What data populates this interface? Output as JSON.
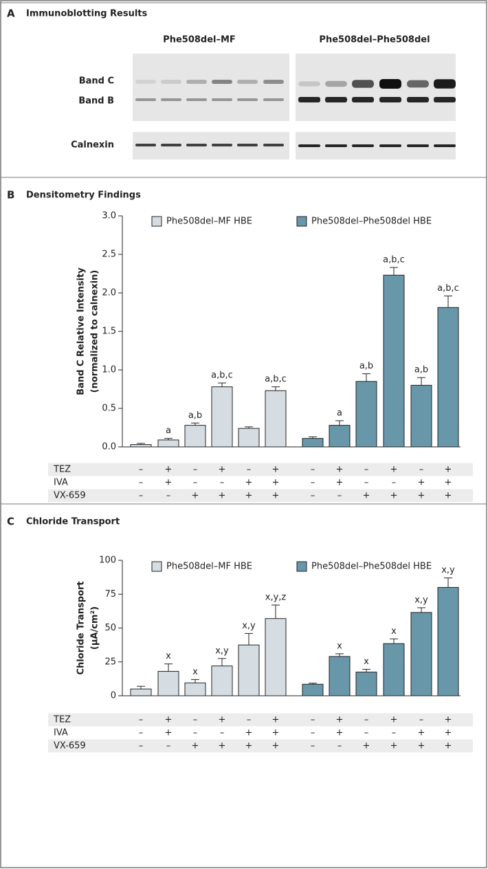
{
  "immunoblot": {
    "letter": "A",
    "title": "Immunoblotting Results",
    "groups": [
      "Phe508del–MF",
      "Phe508del–Phe508del"
    ],
    "bands": [
      "Band C",
      "Band B"
    ],
    "loading_control": "Calnexin"
  },
  "chart_data": [
    {
      "type": "bar",
      "letter": "B",
      "title": "Densitometry Findings",
      "y_label": [
        "Band C Relative Intensity",
        "(normalized to calnexin)"
      ],
      "ylim": [
        0,
        3
      ],
      "yticks": [
        {
          "value": 0,
          "label": "0.0"
        },
        0.5,
        {
          "value": 1,
          "label": "1.0"
        },
        1.5,
        {
          "value": 2,
          "label": "2.0"
        },
        2.5,
        {
          "value": 3,
          "label": "3.0"
        }
      ],
      "series": [
        {
          "name": "Phe508del–MF HBE",
          "color": "#d5dde3",
          "values": [
            0.03,
            0.09,
            0.28,
            0.78,
            0.24,
            0.73
          ],
          "errors": [
            0.015,
            0.02,
            0.03,
            0.05,
            0.02,
            0.05
          ],
          "annotations": [
            null,
            "a",
            "a,b",
            "a,b,c",
            null,
            "a,b,c"
          ]
        },
        {
          "name": "Phe508del–Phe508del HBE",
          "color": "#6897a9",
          "values": [
            0.11,
            0.28,
            0.85,
            2.23,
            0.8,
            1.81
          ],
          "errors": [
            0.02,
            0.06,
            0.1,
            0.1,
            0.1,
            0.15
          ],
          "annotations": [
            null,
            "a",
            "a,b",
            "a,b,c",
            "a,b",
            "a,b,c"
          ]
        }
      ],
      "conditions": [
        {
          "name": "TEZ",
          "marks": [
            "–",
            "+",
            "–",
            "+",
            "–",
            "+",
            "–",
            "+",
            "–",
            "+",
            "–",
            "+"
          ]
        },
        {
          "name": "IVA",
          "marks": [
            "–",
            "+",
            "–",
            "–",
            "+",
            "+",
            "–",
            "+",
            "–",
            "–",
            "+",
            "+"
          ]
        },
        {
          "name": "VX-659",
          "marks": [
            "–",
            "–",
            "+",
            "+",
            "+",
            "+",
            "–",
            "–",
            "+",
            "+",
            "+",
            "+"
          ]
        }
      ]
    },
    {
      "type": "bar",
      "letter": "C",
      "title": "Chloride Transport",
      "y_label": [
        "Chloride Transport",
        "(μA/cm²)"
      ],
      "ylim": [
        0,
        100
      ],
      "yticks": [
        0,
        25,
        50,
        75,
        100
      ],
      "series": [
        {
          "name": "Phe508del–MF HBE",
          "color": "#d5dde3",
          "values": [
            5,
            18,
            9.5,
            22,
            37.5,
            57
          ],
          "errors": [
            2,
            5.5,
            2.5,
            5.5,
            8.5,
            10
          ],
          "annotations": [
            null,
            "x",
            "x",
            "x,y",
            "x,y",
            "x,y,z"
          ]
        },
        {
          "name": "Phe508del–Phe508del HBE",
          "color": "#6897a9",
          "values": [
            8.5,
            29,
            17.5,
            38.5,
            61.5,
            80
          ],
          "errors": [
            0.8,
            2,
            2,
            3.5,
            3.5,
            7
          ],
          "annotations": [
            null,
            "x",
            "x",
            "x",
            "x,y",
            "x,y"
          ]
        }
      ],
      "conditions": [
        {
          "name": "TEZ",
          "marks": [
            "–",
            "+",
            "–",
            "+",
            "–",
            "+",
            "–",
            "+",
            "–",
            "+",
            "–",
            "+"
          ]
        },
        {
          "name": "IVA",
          "marks": [
            "–",
            "+",
            "–",
            "–",
            "+",
            "+",
            "–",
            "+",
            "–",
            "–",
            "+",
            "+"
          ]
        },
        {
          "name": "VX-659",
          "marks": [
            "–",
            "–",
            "+",
            "+",
            "+",
            "+",
            "–",
            "–",
            "+",
            "+",
            "+",
            "+"
          ]
        }
      ]
    }
  ]
}
